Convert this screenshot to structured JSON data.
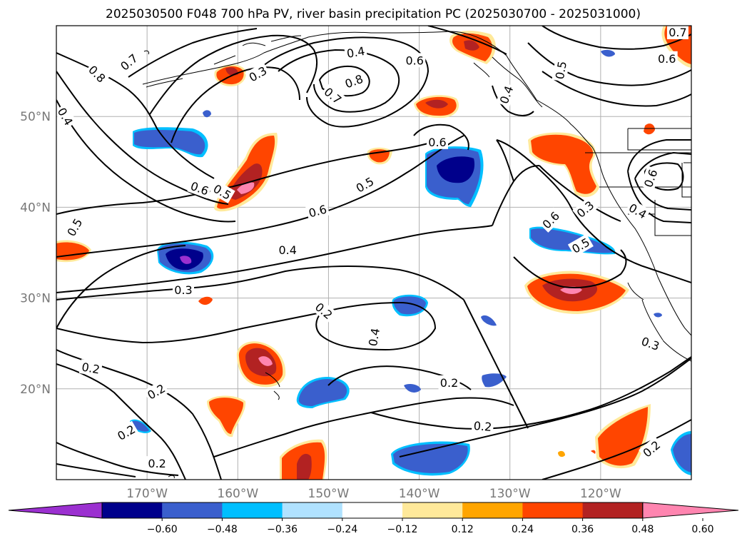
{
  "title": "2025030500 F048 700 hPa PV, river basin precipitation PC (2025030700 - 2025031000)",
  "map": {
    "lon_range": [
      -180,
      -110
    ],
    "lat_range": [
      10,
      60
    ],
    "lon_ticks": [
      {
        "lon": -170,
        "label": "170°W"
      },
      {
        "lon": -160,
        "label": "160°W"
      },
      {
        "lon": -150,
        "label": "150°W"
      },
      {
        "lon": -140,
        "label": "140°W"
      },
      {
        "lon": -130,
        "label": "130°W"
      },
      {
        "lon": -120,
        "label": "120°W"
      }
    ],
    "lat_ticks": [
      {
        "lat": 20,
        "label": "20°N"
      },
      {
        "lat": 30,
        "label": "30°N"
      },
      {
        "lat": 40,
        "label": "40°N"
      },
      {
        "lat": 50,
        "label": "50°N"
      }
    ],
    "grid": true
  },
  "colorbar": {
    "ticks": [
      "−0.60",
      "−0.48",
      "−0.36",
      "−0.24",
      "−0.12",
      "0.12",
      "0.24",
      "0.36",
      "0.48",
      "0.60"
    ],
    "colors": [
      "#9b30d0",
      "#00008b",
      "#3a5fcd",
      "#00bfff",
      "#b0e2ff",
      "#ffffff",
      "#ffe99a",
      "#ffa500",
      "#ff4500",
      "#b22222",
      "#ff85b0"
    ],
    "extend": "both"
  },
  "pv_contour_labels": [
    {
      "text": "0.4",
      "lon": -147.0,
      "lat": 57.1,
      "rot": -10
    },
    {
      "text": "0.6",
      "lon": -140.5,
      "lat": 56.2,
      "rot": 0
    },
    {
      "text": "0.7",
      "lon": -172.0,
      "lat": 56.0,
      "rot": -40
    },
    {
      "text": "0.8",
      "lon": -175.5,
      "lat": 54.7,
      "rot": 45
    },
    {
      "text": "0.3",
      "lon": -157.8,
      "lat": 54.7,
      "rot": -30
    },
    {
      "text": "0.8",
      "lon": -147.2,
      "lat": 53.9,
      "rot": -20
    },
    {
      "text": "0.7",
      "lon": -149.5,
      "lat": 52.3,
      "rot": 40
    },
    {
      "text": "0.4",
      "lon": -179.0,
      "lat": 50.0,
      "rot": 60
    },
    {
      "text": "0.4",
      "lon": -130.4,
      "lat": 52.4,
      "rot": -70
    },
    {
      "text": "0.7",
      "lon": -111.5,
      "lat": 59.3,
      "rot": 0
    },
    {
      "text": "0.6",
      "lon": -112.7,
      "lat": 56.4,
      "rot": 0
    },
    {
      "text": "0.5",
      "lon": -124.4,
      "lat": 55.1,
      "rot": -80
    },
    {
      "text": "0.6",
      "lon": -138.0,
      "lat": 47.2,
      "rot": 0
    },
    {
      "text": "0.6",
      "lon": -164.2,
      "lat": 42.1,
      "rot": 20
    },
    {
      "text": "0.5",
      "lon": -161.7,
      "lat": 41.7,
      "rot": 30
    },
    {
      "text": "0.5",
      "lon": -146.0,
      "lat": 42.5,
      "rot": -30
    },
    {
      "text": "0.6",
      "lon": -151.2,
      "lat": 39.6,
      "rot": -15
    },
    {
      "text": "0.4",
      "lon": -154.5,
      "lat": 35.3,
      "rot": 0
    },
    {
      "text": "0.5",
      "lon": -178.0,
      "lat": 37.8,
      "rot": -60
    },
    {
      "text": "0.3",
      "lon": -166.0,
      "lat": 30.9,
      "rot": 0
    },
    {
      "text": "0.6",
      "lon": -125.5,
      "lat": 38.6,
      "rot": -45
    },
    {
      "text": "0.5",
      "lon": -122.2,
      "lat": 35.8,
      "rot": -30
    },
    {
      "text": "0.3",
      "lon": -121.7,
      "lat": 39.8,
      "rot": -40
    },
    {
      "text": "0.4",
      "lon": -115.9,
      "lat": 39.6,
      "rot": 30
    },
    {
      "text": "0.6",
      "lon": -114.5,
      "lat": 43.2,
      "rot": -70
    },
    {
      "text": "0.2",
      "lon": -150.5,
      "lat": 28.6,
      "rot": 40
    },
    {
      "text": "0.4",
      "lon": -145.0,
      "lat": 25.7,
      "rot": -80
    },
    {
      "text": "0.2",
      "lon": -176.2,
      "lat": 22.3,
      "rot": 10
    },
    {
      "text": "0.2",
      "lon": -169.0,
      "lat": 19.7,
      "rot": -30
    },
    {
      "text": "0.2",
      "lon": -172.3,
      "lat": 15.2,
      "rot": -30
    },
    {
      "text": "0.2",
      "lon": -168.9,
      "lat": 11.8,
      "rot": 0
    },
    {
      "text": "0.2",
      "lon": -136.7,
      "lat": 20.7,
      "rot": 0
    },
    {
      "text": "0.2",
      "lon": -133.0,
      "lat": 15.9,
      "rot": 5
    },
    {
      "text": "0.3",
      "lon": -114.5,
      "lat": 25.0,
      "rot": 20
    },
    {
      "text": "0.2",
      "lon": -114.4,
      "lat": 13.4,
      "rot": -40
    }
  ]
}
